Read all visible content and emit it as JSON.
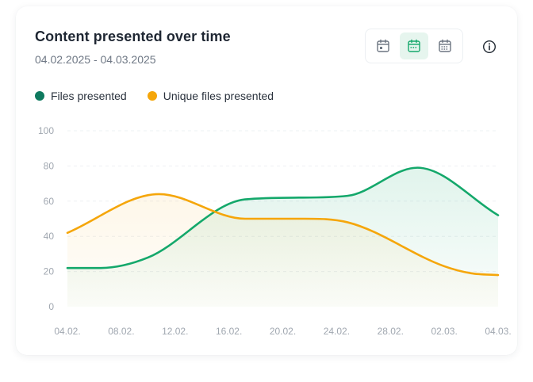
{
  "card": {
    "title": "Content presented over time",
    "date_range": "04.02.2025 - 04.03.2025"
  },
  "period_buttons": [
    {
      "icon": "calendar-day-icon",
      "active": false
    },
    {
      "icon": "calendar-week-icon",
      "active": true
    },
    {
      "icon": "calendar-month-icon",
      "active": false
    }
  ],
  "info_icon": "info-icon",
  "colors": {
    "files_presented": "#0f7a5f",
    "files_presented_line": "#14a86b",
    "unique_files_presented": "#f5a60a",
    "grid": "#eef0f3",
    "accent_bg": "#e6f5ee"
  },
  "legend": [
    {
      "label": "Files presented",
      "color": "#0f7a5f"
    },
    {
      "label": "Unique files presented",
      "color": "#f5a60a"
    }
  ],
  "chart_data": {
    "type": "area",
    "x": [
      "04.02.",
      "08.02.",
      "12.02.",
      "16.02.",
      "20.02.",
      "24.02.",
      "28.02.",
      "02.03.",
      "04.03."
    ],
    "ylim": [
      0,
      100
    ],
    "yticks": [
      0,
      20,
      40,
      60,
      80,
      100
    ],
    "grid": true,
    "legend_position": "top-left",
    "series": [
      {
        "name": "Files presented",
        "color": "#14a86b",
        "points": [
          [
            0,
            22
          ],
          [
            0.6,
            22
          ],
          [
            1.5,
            28
          ],
          [
            3.3,
            61
          ],
          [
            4.3,
            62
          ],
          [
            5.2,
            63
          ],
          [
            6.5,
            79
          ],
          [
            8,
            52
          ]
        ]
      },
      {
        "name": "Unique files presented",
        "color": "#f5a60a",
        "points": [
          [
            0,
            42
          ],
          [
            1.7,
            64
          ],
          [
            3.3,
            50
          ],
          [
            4.4,
            50
          ],
          [
            5.2,
            48
          ],
          [
            7,
            23
          ],
          [
            7.5,
            19
          ],
          [
            8,
            18
          ]
        ]
      }
    ]
  }
}
